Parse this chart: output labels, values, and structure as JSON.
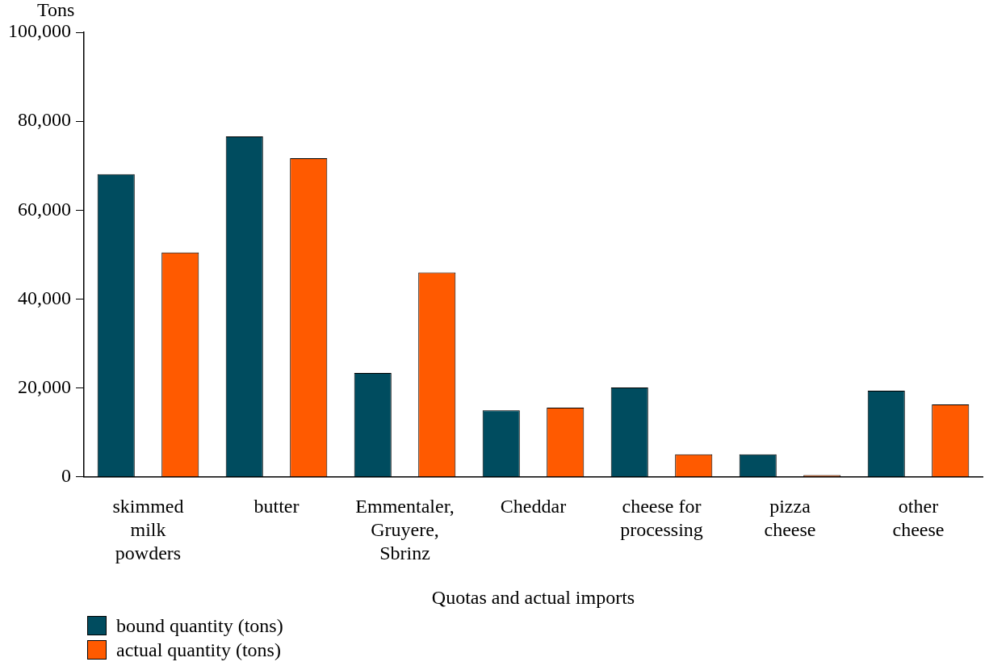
{
  "chart_data": {
    "type": "bar",
    "xlabel": "Quotas and actual imports",
    "ylabel": "Tons",
    "categories": [
      "skimmed milk powders",
      "butter",
      "Emmentaler, Gruyere, Sbrinz",
      "Cheddar",
      "cheese for processing",
      "pizza cheese",
      "other cheese"
    ],
    "series": [
      {
        "name": "bound quantity (tons)",
        "color": "#004c5f",
        "values": [
          68100,
          76600,
          23400,
          15000,
          20100,
          5100,
          19400
        ]
      },
      {
        "name": "actual quantity (tons)",
        "color": "#ff5a00",
        "values": [
          50500,
          71700,
          46000,
          15600,
          5100,
          400,
          16300
        ]
      }
    ],
    "ylim": [
      0,
      100000
    ],
    "yticks": [
      {
        "value": 0,
        "label": "0"
      },
      {
        "value": 20000,
        "label": "20,000"
      },
      {
        "value": 40000,
        "label": "40,000"
      },
      {
        "value": 60000,
        "label": "60,000"
      },
      {
        "value": 80000,
        "label": "80,000"
      },
      {
        "value": 100000,
        "label": "100,000"
      }
    ],
    "grid": false,
    "legend": "bottom left"
  }
}
